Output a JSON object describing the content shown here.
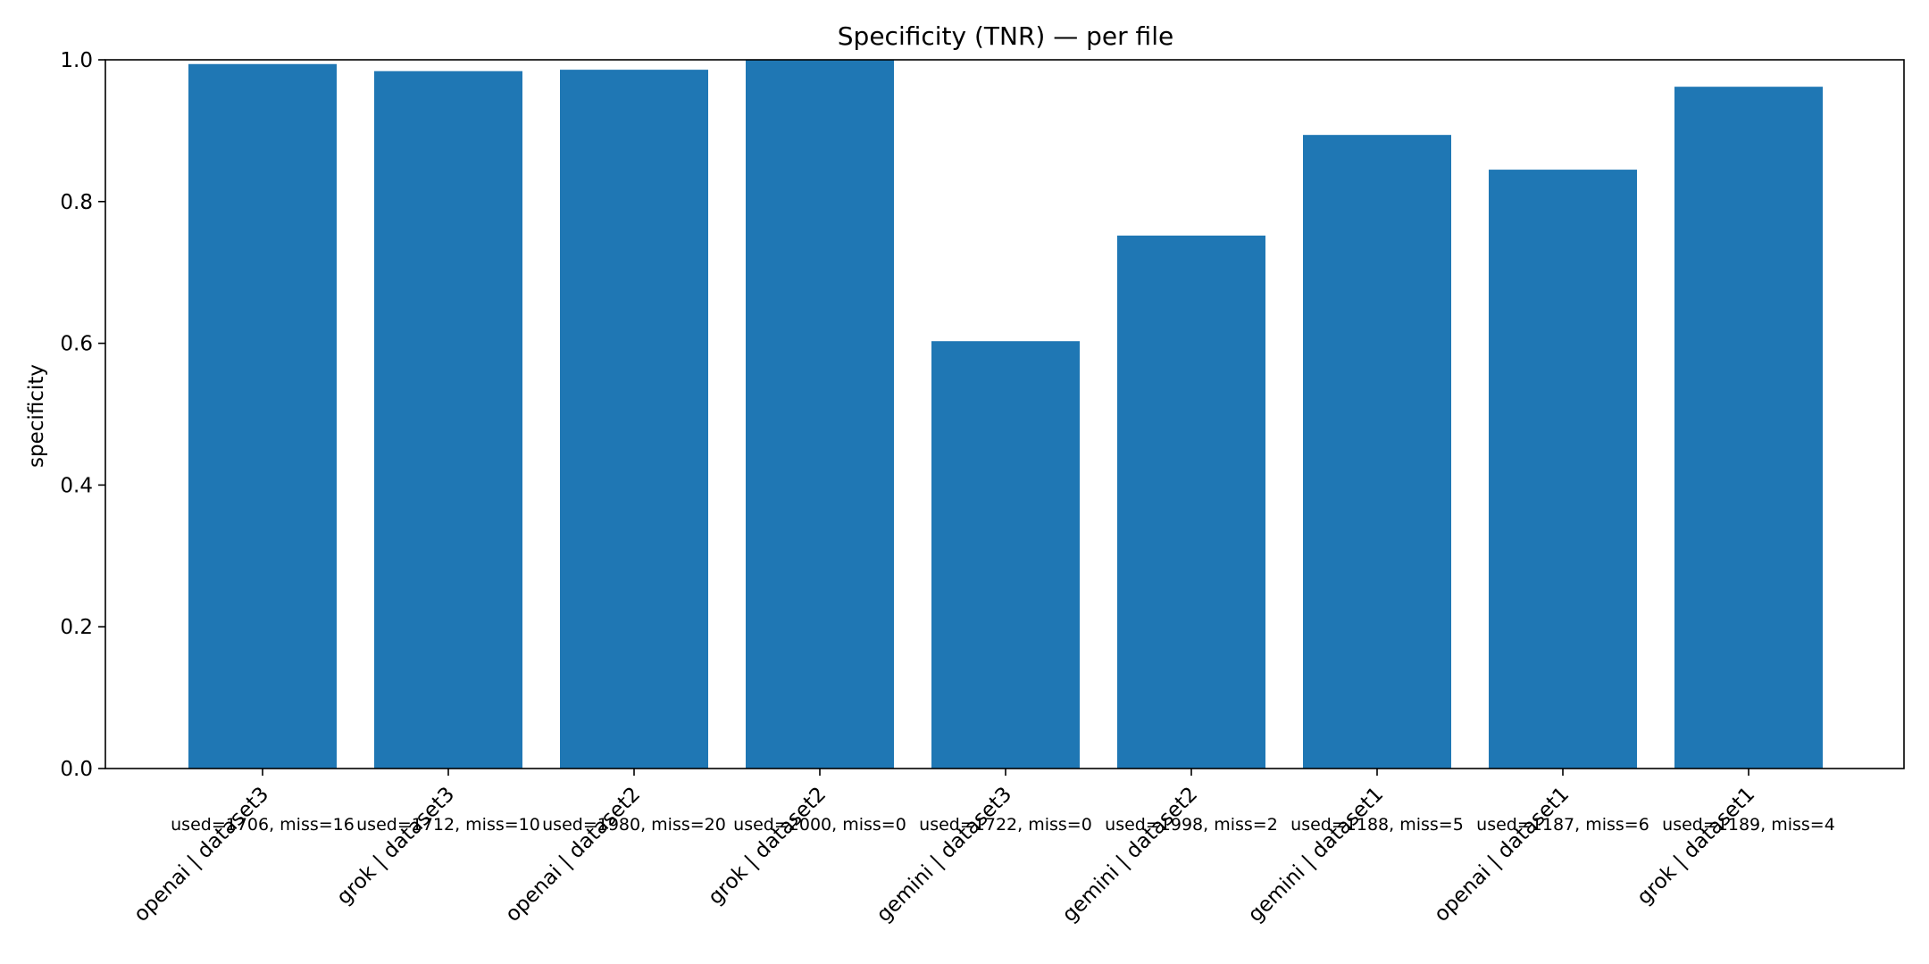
{
  "chart_data": {
    "type": "bar",
    "title": "Specificity (TNR) — per file",
    "xlabel": "",
    "ylabel": "specificity",
    "ylim": [
      0.0,
      1.0
    ],
    "yticks": [
      "0.0",
      "0.2",
      "0.4",
      "0.6",
      "0.8",
      "1.0"
    ],
    "grid": false,
    "bar_color": "#1f77b4",
    "categories": [
      "openai | dataset3",
      "grok | dataset3",
      "openai | dataset2",
      "grok | dataset2",
      "gemini | dataset3",
      "gemini | dataset2",
      "gemini | dataset1",
      "openai | dataset1",
      "grok | dataset1"
    ],
    "values": [
      0.994,
      0.984,
      0.986,
      1.0,
      0.603,
      0.752,
      0.894,
      0.845,
      0.962
    ],
    "annotations": [
      "used=1706, miss=16",
      "used=1712, miss=10",
      "used=1980, miss=20",
      "used=2000, miss=0",
      "used=1722, miss=0",
      "used=1998, miss=2",
      "used=1188, miss=5",
      "used=1187, miss=6",
      "used=1189, miss=4"
    ]
  }
}
